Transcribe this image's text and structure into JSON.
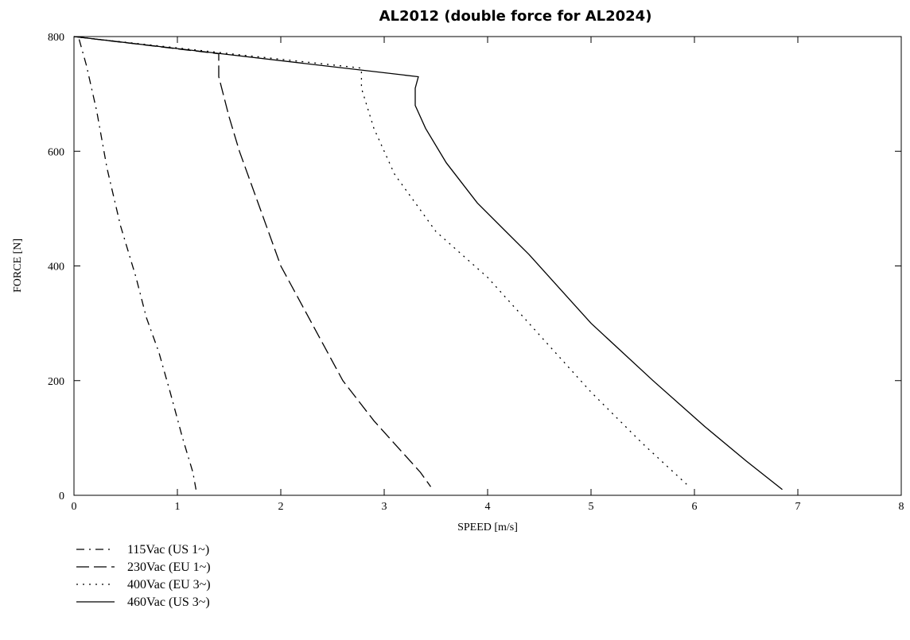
{
  "chart_data": {
    "type": "line",
    "title": "AL2012 (double force for AL2024)",
    "xlabel": "SPEED [m/s]",
    "ylabel": "FORCE [N]",
    "xlim": [
      0,
      8
    ],
    "ylim": [
      0,
      800
    ],
    "x_ticks": [
      0,
      1,
      2,
      3,
      4,
      5,
      6,
      7,
      8
    ],
    "y_ticks": [
      0,
      200,
      400,
      600,
      800
    ],
    "grid": false,
    "legend_position": "bottom-left",
    "series": [
      {
        "name": "115Vac (US 1~)",
        "style": "dashdot",
        "color": "#000000",
        "points": [
          [
            0.05,
            795
          ],
          [
            0.12,
            750
          ],
          [
            0.22,
            670
          ],
          [
            0.32,
            570
          ],
          [
            0.45,
            470
          ],
          [
            0.6,
            380
          ],
          [
            0.7,
            310
          ],
          [
            0.82,
            250
          ],
          [
            0.93,
            180
          ],
          [
            1.05,
            100
          ],
          [
            1.15,
            40
          ],
          [
            1.18,
            10
          ]
        ]
      },
      {
        "name": "230Vac (EU 1~)",
        "style": "longdash",
        "color": "#000000",
        "points": [
          [
            0.0,
            800
          ],
          [
            1.4,
            770
          ],
          [
            1.4,
            730
          ],
          [
            1.5,
            660
          ],
          [
            1.6,
            600
          ],
          [
            1.8,
            500
          ],
          [
            2.0,
            400
          ],
          [
            2.3,
            300
          ],
          [
            2.6,
            200
          ],
          [
            2.9,
            130
          ],
          [
            3.15,
            80
          ],
          [
            3.35,
            40
          ],
          [
            3.45,
            15
          ]
        ]
      },
      {
        "name": "400Vac (EU 3~)",
        "style": "dotted",
        "color": "#000000",
        "points": [
          [
            0.0,
            800
          ],
          [
            2.78,
            745
          ],
          [
            2.78,
            710
          ],
          [
            2.9,
            640
          ],
          [
            3.1,
            560
          ],
          [
            3.5,
            460
          ],
          [
            4.0,
            380
          ],
          [
            4.5,
            280
          ],
          [
            5.0,
            180
          ],
          [
            5.5,
            90
          ],
          [
            5.95,
            15
          ]
        ]
      },
      {
        "name": "460Vac (US 3~)",
        "style": "solid",
        "color": "#000000",
        "points": [
          [
            0.0,
            800
          ],
          [
            3.33,
            730
          ],
          [
            3.3,
            710
          ],
          [
            3.3,
            680
          ],
          [
            3.4,
            640
          ],
          [
            3.6,
            580
          ],
          [
            3.9,
            510
          ],
          [
            4.4,
            420
          ],
          [
            5.0,
            300
          ],
          [
            5.6,
            200
          ],
          [
            6.1,
            120
          ],
          [
            6.5,
            60
          ],
          [
            6.85,
            10
          ]
        ]
      }
    ]
  }
}
